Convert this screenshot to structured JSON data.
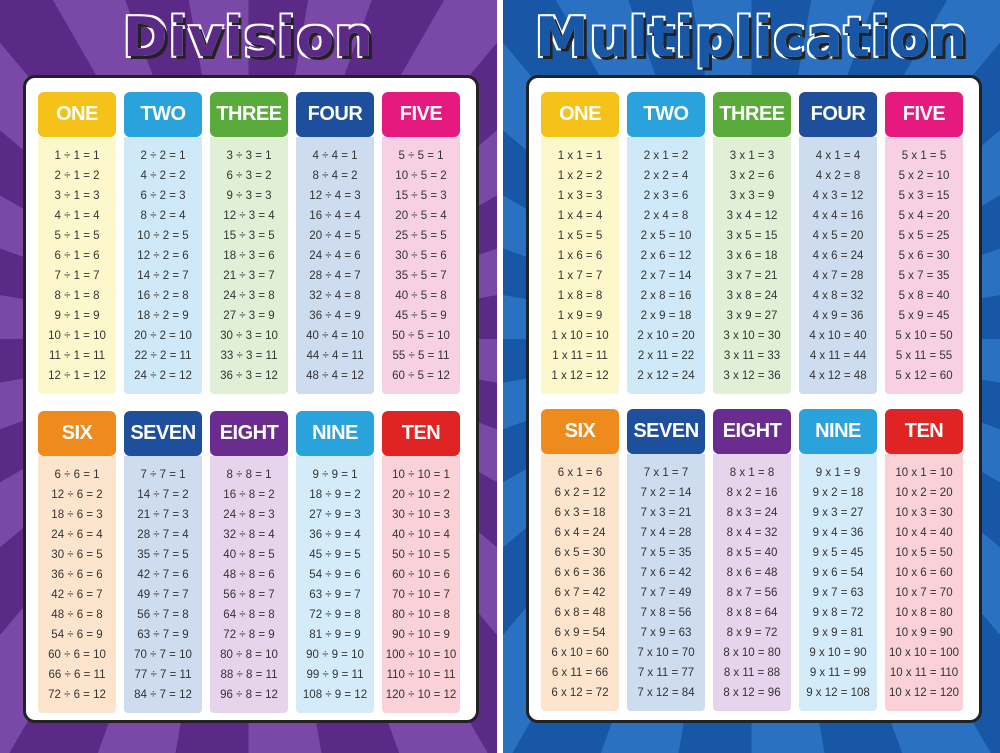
{
  "posters": [
    {
      "title": "Division",
      "background": "#5b2a86",
      "tables": [
        {
          "label": "ONE",
          "color": "#f5c21a",
          "bg": "#fdf8cc",
          "rows": [
            "1 ÷ 1 = 1",
            "2 ÷ 1 = 2",
            "3 ÷ 1 = 3",
            "4 ÷ 1 = 4",
            "5 ÷ 1 = 5",
            "6 ÷ 1 = 6",
            "7 ÷ 1 = 7",
            "8 ÷ 1 = 8",
            "9 ÷ 1 = 9",
            "10 ÷ 1 = 10",
            "11 ÷ 1 = 11",
            "12 ÷ 1 = 12"
          ]
        },
        {
          "label": "TWO",
          "color": "#2aa3dc",
          "bg": "#d0e9f8",
          "rows": [
            "2 ÷ 2 = 1",
            "4 ÷ 2 = 2",
            "6 ÷ 2 = 3",
            "8 ÷ 2 = 4",
            "10 ÷ 2 = 5",
            "12 ÷ 2 = 6",
            "14 ÷ 2 = 7",
            "16 ÷ 2 = 8",
            "18 ÷ 2 = 9",
            "20 ÷ 2 = 10",
            "22 ÷ 2 = 11",
            "24 ÷ 2 = 12"
          ]
        },
        {
          "label": "THREE",
          "color": "#5aab3c",
          "bg": "#e1efd7",
          "rows": [
            "3 ÷ 3 = 1",
            "6 ÷ 3 = 2",
            "9 ÷ 3 = 3",
            "12 ÷ 3 = 4",
            "15 ÷ 3 = 5",
            "18 ÷ 3 = 6",
            "21 ÷ 3 = 7",
            "24 ÷ 3 = 8",
            "27 ÷ 3 = 9",
            "30 ÷ 3 = 10",
            "33 ÷ 3 = 11",
            "36 ÷ 3 = 12"
          ]
        },
        {
          "label": "FOUR",
          "color": "#1d4f9c",
          "bg": "#cedcef",
          "rows": [
            "4 ÷ 4 = 1",
            "8 ÷ 4 = 2",
            "12 ÷ 4 = 3",
            "16 ÷ 4 = 4",
            "20 ÷ 4 = 5",
            "24 ÷ 4 = 6",
            "28 ÷ 4 = 7",
            "32 ÷ 4 = 8",
            "36 ÷ 4 = 9",
            "40 ÷ 4 = 10",
            "44 ÷ 4 = 11",
            "48 ÷ 4 = 12"
          ]
        },
        {
          "label": "FIVE",
          "color": "#e5197e",
          "bg": "#f8d0e3",
          "rows": [
            "5 ÷ 5 = 1",
            "10 ÷ 5 = 2",
            "15 ÷ 5 = 3",
            "20 ÷ 5 = 4",
            "25 ÷ 5 = 5",
            "30 ÷ 5 = 6",
            "35 ÷ 5 = 7",
            "40 ÷ 5 = 8",
            "45 ÷ 5 = 9",
            "50 ÷ 5 = 10",
            "55 ÷ 5 = 11",
            "60 ÷ 5 = 12"
          ]
        },
        {
          "label": "SIX",
          "color": "#ef8a1c",
          "bg": "#fde4cd",
          "rows": [
            "6 ÷ 6 = 1",
            "12 ÷ 6 = 2",
            "18 ÷ 6 = 3",
            "24 ÷ 6 = 4",
            "30 ÷ 6 = 5",
            "36 ÷ 6 = 6",
            "42 ÷ 6 = 7",
            "48 ÷ 6 = 8",
            "54 ÷ 6 = 9",
            "60 ÷ 6 = 10",
            "66 ÷ 6 = 11",
            "72 ÷ 6 = 12"
          ]
        },
        {
          "label": "SEVEN",
          "color": "#1e4f9c",
          "bg": "#cedcef",
          "rows": [
            "7 ÷ 7 = 1",
            "14 ÷ 7 = 2",
            "21 ÷ 7 = 3",
            "28 ÷ 7 = 4",
            "35 ÷ 7 = 5",
            "42 ÷ 7 = 6",
            "49 ÷ 7 = 7",
            "56 ÷ 7 = 8",
            "63 ÷ 7 = 9",
            "70 ÷ 7 = 10",
            "77 ÷ 7 = 11",
            "84 ÷ 7 = 12"
          ]
        },
        {
          "label": "EIGHT",
          "color": "#6a2d8f",
          "bg": "#e6d4ed",
          "rows": [
            "8 ÷ 8 = 1",
            "16 ÷ 8 = 2",
            "24 ÷ 8 = 3",
            "32 ÷ 8 = 4",
            "40 ÷ 8 = 5",
            "48 ÷ 8 = 6",
            "56 ÷ 8 = 7",
            "64 ÷ 8 = 8",
            "72 ÷ 8 = 9",
            "80 ÷ 8 = 10",
            "88 ÷ 8 = 11",
            "96 ÷ 8 = 12"
          ]
        },
        {
          "label": "NINE",
          "color": "#2aa3dc",
          "bg": "#d4ecf9",
          "rows": [
            "9 ÷ 9 = 1",
            "18 ÷ 9 = 2",
            "27 ÷ 9 = 3",
            "36 ÷ 9 = 4",
            "45 ÷ 9 = 5",
            "54 ÷ 9 = 6",
            "63 ÷ 9 = 7",
            "72 ÷ 9 = 8",
            "81 ÷ 9 = 9",
            "90 ÷ 9 = 10",
            "99 ÷ 9 = 11",
            "108 ÷ 9 = 12"
          ]
        },
        {
          "label": "TEN",
          "color": "#e02424",
          "bg": "#f9d1d7",
          "rows": [
            "10 ÷ 10 = 1",
            "20 ÷ 10 = 2",
            "30 ÷ 10 = 3",
            "40 ÷ 10 = 4",
            "50 ÷ 10 = 5",
            "60 ÷ 10 = 6",
            "70 ÷ 10 = 7",
            "80 ÷ 10 = 8",
            "90 ÷ 10 = 9",
            "100 ÷ 10 = 10",
            "110 ÷ 10 = 11",
            "120 ÷ 10 = 12"
          ]
        }
      ]
    },
    {
      "title": "Multiplication",
      "background": "#1757a6",
      "tables": [
        {
          "label": "ONE",
          "color": "#f5c21a",
          "bg": "#fdf8cc",
          "rows": [
            "1 x 1 = 1",
            "1 x 2 = 2",
            "1 x 3 = 3",
            "1 x 4 = 4",
            "1 x 5 = 5",
            "1 x 6 = 6",
            "1 x 7 = 7",
            "1 x 8 = 8",
            "1 x 9 = 9",
            "1 x 10 = 10",
            "1 x 11 = 11",
            "1 x 12 = 12"
          ]
        },
        {
          "label": "TWO",
          "color": "#2aa3dc",
          "bg": "#d0e9f8",
          "rows": [
            "2 x 1 = 2",
            "2 x 2 = 4",
            "2 x 3 = 6",
            "2 x 4 = 8",
            "2 x 5 = 10",
            "2 x 6 = 12",
            "2 x 7 = 14",
            "2 x 8 = 16",
            "2 x 9 = 18",
            "2 x 10 = 20",
            "2 x 11 = 22",
            "2 x 12 = 24"
          ]
        },
        {
          "label": "THREE",
          "color": "#5aab3c",
          "bg": "#e1efd7",
          "rows": [
            "3 x 1 = 3",
            "3 x 2 = 6",
            "3 x 3 = 9",
            "3 x 4 = 12",
            "3 x 5 = 15",
            "3 x 6 = 18",
            "3 x 7 = 21",
            "3 x 8 = 24",
            "3 x 9 = 27",
            "3 x 10 = 30",
            "3 x 11 = 33",
            "3 x 12 = 36"
          ]
        },
        {
          "label": "FOUR",
          "color": "#1d4f9c",
          "bg": "#cedcef",
          "rows": [
            "4 x 1 = 4",
            "4 x 2 = 8",
            "4 x 3 = 12",
            "4 x 4 = 16",
            "4 x 5 = 20",
            "4 x 6 = 24",
            "4 x 7 = 28",
            "4 x 8 = 32",
            "4 x 9 = 36",
            "4 x 10 = 40",
            "4 x 11 = 44",
            "4 x 12 = 48"
          ]
        },
        {
          "label": "FIVE",
          "color": "#e5197e",
          "bg": "#f8d0e3",
          "rows": [
            "5 x 1 = 5",
            "5 x 2 = 10",
            "5 x 3 = 15",
            "5 x 4 = 20",
            "5 x 5 = 25",
            "5 x 6 = 30",
            "5 x 7 = 35",
            "5 x 8 = 40",
            "5 x 9 = 45",
            "5 x 10 = 50",
            "5 x 11 = 55",
            "5 x 12 = 60"
          ]
        },
        {
          "label": "SIX",
          "color": "#ef8a1c",
          "bg": "#fde4cd",
          "rows": [
            "6 x 1 = 6",
            "6 x 2 = 12",
            "6 x 3 = 18",
            "6 x 4 = 24",
            "6 x 5 = 30",
            "6 x 6 = 36",
            "6 x 7 = 42",
            "6 x 8 = 48",
            "6 x 9 = 54",
            "6 x 10 = 60",
            "6 x 11 = 66",
            "6 x 12 = 72"
          ]
        },
        {
          "label": "SEVEN",
          "color": "#1e4f9c",
          "bg": "#cedcef",
          "rows": [
            "7 x 1 = 7",
            "7 x 2 = 14",
            "7 x 3 = 21",
            "7 x 4 = 28",
            "7 x 5 = 35",
            "7 x 6 = 42",
            "7 x 7 = 49",
            "7 x 8 = 56",
            "7 x 9 = 63",
            "7 x 10 = 70",
            "7 x 11 = 77",
            "7 x 12 = 84"
          ]
        },
        {
          "label": "EIGHT",
          "color": "#6a2d8f",
          "bg": "#e6d4ed",
          "rows": [
            "8 x 1 = 8",
            "8 x 2 = 16",
            "8 x 3 = 24",
            "8 x 4 = 32",
            "8 x 5 = 40",
            "8 x 6 = 48",
            "8 x 7 = 56",
            "8 x 8 = 64",
            "8 x 9 = 72",
            "8 x 10 = 80",
            "8 x 11 = 88",
            "8 x 12 = 96"
          ]
        },
        {
          "label": "NINE",
          "color": "#2aa3dc",
          "bg": "#d4ecf9",
          "rows": [
            "9 x 1 = 9",
            "9 x 2 = 18",
            "9 x 3 = 27",
            "9 x 4 = 36",
            "9 x 5 = 45",
            "9 x 6 = 54",
            "9 x 7 = 63",
            "9 x 8 = 72",
            "9 x 9 = 81",
            "9 x 10 = 90",
            "9 x 11 = 99",
            "9 x 12 = 108"
          ]
        },
        {
          "label": "TEN",
          "color": "#e02424",
          "bg": "#f9d1d7",
          "rows": [
            "10 x 1 = 10",
            "10 x 2 = 20",
            "10 x 3 = 30",
            "10 x 4 = 40",
            "10 x 5 = 50",
            "10 x 6 = 60",
            "10 x 7 = 70",
            "10 x 8 = 80",
            "10 x 9 = 90",
            "10 x 10 = 100",
            "10 x 11 = 110",
            "10 x 12 = 120"
          ]
        }
      ]
    }
  ]
}
